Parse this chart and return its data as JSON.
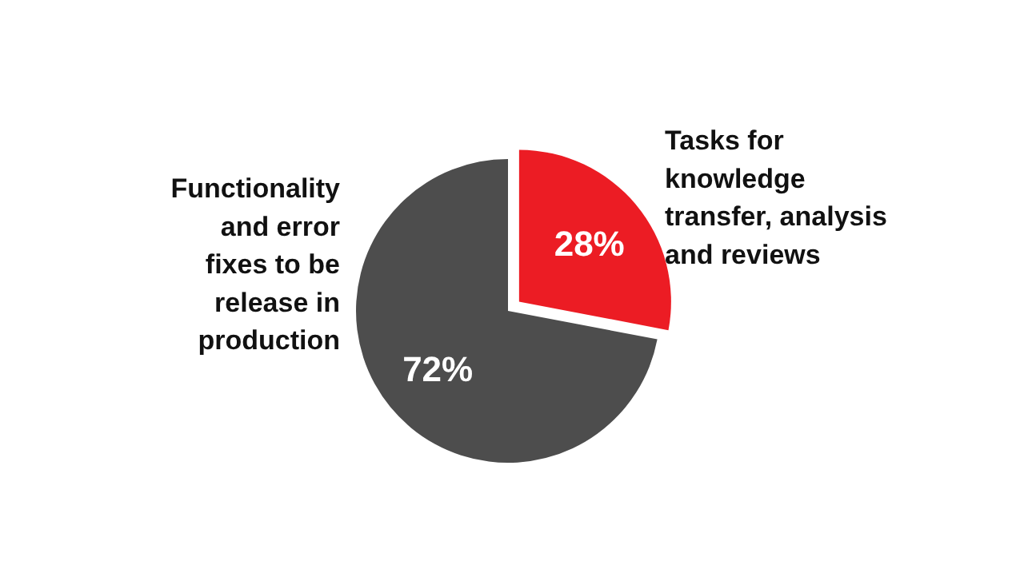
{
  "chart_data": {
    "type": "pie",
    "categories": [
      "Tasks for knowledge transfer, analysis and reviews",
      "Functionality and error fixes to be release in production"
    ],
    "values": [
      28,
      72
    ],
    "colors": [
      "#ec1c24",
      "#4d4d4d"
    ],
    "value_labels": [
      "28%",
      "72%"
    ]
  }
}
